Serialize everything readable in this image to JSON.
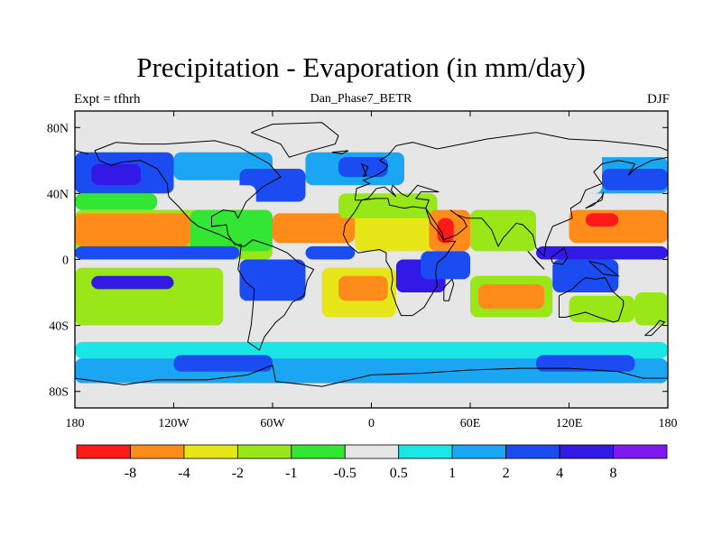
{
  "title": "Precipitation - Evaporation (in mm/day)",
  "left_label": "Expt = tfhrh",
  "center_label": "Dan_Phase7_BETR",
  "right_label": "DJF",
  "chart_data": {
    "type": "heatmap",
    "title": "Precipitation - Evaporation (in mm/day)",
    "x_tick_labels": [
      "180",
      "120W",
      "60W",
      "0",
      "60E",
      "120E",
      "180"
    ],
    "x_tick_values": [
      -180,
      -120,
      -60,
      0,
      60,
      120,
      180
    ],
    "y_tick_labels": [
      "80N",
      "40N",
      "0",
      "40S",
      "80S"
    ],
    "y_tick_values": [
      80,
      40,
      0,
      -40,
      -80
    ],
    "xlim": [
      -180,
      180
    ],
    "ylim": [
      -90,
      90
    ],
    "colorbar_labels": [
      "-8",
      "-4",
      "-2",
      "-1",
      "-0.5",
      "0.5",
      "1",
      "2",
      "4",
      "8"
    ],
    "colorbar_colors": [
      "#ff1a1a",
      "#ff8c1a",
      "#e6e619",
      "#99e619",
      "#33e633",
      "#e6e6e6",
      "#1ae6e6",
      "#1aa6f2",
      "#1a4cf2",
      "#3319e6",
      "#7f19f2"
    ],
    "regions": [
      {
        "cls": 5,
        "lon": [
          -180,
          180
        ],
        "lat": [
          65,
          90
        ]
      },
      {
        "cls": 8,
        "lon": [
          -180,
          -120
        ],
        "lat": [
          40,
          65
        ]
      },
      {
        "cls": 9,
        "lon": [
          -170,
          -140
        ],
        "lat": [
          45,
          58
        ]
      },
      {
        "cls": 7,
        "lon": [
          -120,
          -60
        ],
        "lat": [
          48,
          65
        ]
      },
      {
        "cls": 8,
        "lon": [
          -80,
          -40
        ],
        "lat": [
          35,
          55
        ]
      },
      {
        "cls": 7,
        "lon": [
          -40,
          20
        ],
        "lat": [
          45,
          65
        ]
      },
      {
        "cls": 8,
        "lon": [
          -20,
          10
        ],
        "lat": [
          50,
          62
        ]
      },
      {
        "cls": 5,
        "lon": [
          -110,
          -70
        ],
        "lat": [
          25,
          45
        ]
      },
      {
        "cls": 7,
        "lon": [
          130,
          180
        ],
        "lat": [
          40,
          62
        ]
      },
      {
        "cls": 8,
        "lon": [
          140,
          180
        ],
        "lat": [
          42,
          55
        ]
      },
      {
        "cls": 5,
        "lon": [
          20,
          140
        ],
        "lat": [
          40,
          65
        ]
      },
      {
        "cls": 4,
        "lon": [
          -180,
          -130
        ],
        "lat": [
          30,
          40
        ]
      },
      {
        "cls": 3,
        "lon": [
          -180,
          -60
        ],
        "lat": [
          0,
          30
        ]
      },
      {
        "cls": 1,
        "lon": [
          -180,
          -110
        ],
        "lat": [
          8,
          28
        ]
      },
      {
        "cls": 4,
        "lon": [
          -110,
          -60
        ],
        "lat": [
          5,
          30
        ]
      },
      {
        "cls": 1,
        "lon": [
          -60,
          -10
        ],
        "lat": [
          10,
          28
        ]
      },
      {
        "cls": 2,
        "lon": [
          -10,
          40
        ],
        "lat": [
          5,
          35
        ]
      },
      {
        "cls": 3,
        "lon": [
          -20,
          40
        ],
        "lat": [
          25,
          40
        ]
      },
      {
        "cls": 1,
        "lon": [
          35,
          60
        ],
        "lat": [
          5,
          30
        ]
      },
      {
        "cls": 0,
        "lon": [
          40,
          50
        ],
        "lat": [
          10,
          25
        ]
      },
      {
        "cls": 3,
        "lon": [
          60,
          100
        ],
        "lat": [
          5,
          30
        ]
      },
      {
        "cls": 1,
        "lon": [
          120,
          180
        ],
        "lat": [
          10,
          30
        ]
      },
      {
        "cls": 0,
        "lon": [
          130,
          150
        ],
        "lat": [
          20,
          28
        ]
      },
      {
        "cls": 9,
        "lon": [
          100,
          180
        ],
        "lat": [
          0,
          8
        ]
      },
      {
        "cls": 8,
        "lon": [
          -180,
          -80
        ],
        "lat": [
          0,
          8
        ]
      },
      {
        "cls": 8,
        "lon": [
          -40,
          -10
        ],
        "lat": [
          0,
          8
        ]
      },
      {
        "cls": 3,
        "lon": [
          -180,
          -90
        ],
        "lat": [
          -40,
          -5
        ]
      },
      {
        "cls": 9,
        "lon": [
          -170,
          -120
        ],
        "lat": [
          -18,
          -10
        ]
      },
      {
        "cls": 8,
        "lon": [
          -80,
          -40
        ],
        "lat": [
          -25,
          0
        ]
      },
      {
        "cls": 2,
        "lon": [
          -30,
          15
        ],
        "lat": [
          -35,
          -5
        ]
      },
      {
        "cls": 1,
        "lon": [
          -20,
          10
        ],
        "lat": [
          -25,
          -10
        ]
      },
      {
        "cls": 9,
        "lon": [
          15,
          45
        ],
        "lat": [
          -20,
          0
        ]
      },
      {
        "cls": 8,
        "lon": [
          30,
          60
        ],
        "lat": [
          -12,
          5
        ]
      },
      {
        "cls": 3,
        "lon": [
          60,
          110
        ],
        "lat": [
          -35,
          -10
        ]
      },
      {
        "cls": 1,
        "lon": [
          65,
          105
        ],
        "lat": [
          -30,
          -15
        ]
      },
      {
        "cls": 8,
        "lon": [
          110,
          150
        ],
        "lat": [
          -20,
          0
        ]
      },
      {
        "cls": 3,
        "lon": [
          120,
          160
        ],
        "lat": [
          -38,
          -22
        ]
      },
      {
        "cls": 3,
        "lon": [
          160,
          180
        ],
        "lat": [
          -40,
          -20
        ]
      },
      {
        "cls": 5,
        "lon": [
          -180,
          180
        ],
        "lat": [
          -55,
          -40
        ]
      },
      {
        "cls": 6,
        "lon": [
          -180,
          180
        ],
        "lat": [
          -60,
          -50
        ]
      },
      {
        "cls": 7,
        "lon": [
          -180,
          180
        ],
        "lat": [
          -75,
          -60
        ]
      },
      {
        "cls": 8,
        "lon": [
          -120,
          -60
        ],
        "lat": [
          -68,
          -58
        ]
      },
      {
        "cls": 8,
        "lon": [
          100,
          160
        ],
        "lat": [
          -68,
          -58
        ]
      },
      {
        "cls": 5,
        "lon": [
          -180,
          180
        ],
        "lat": [
          -90,
          -75
        ]
      }
    ]
  }
}
